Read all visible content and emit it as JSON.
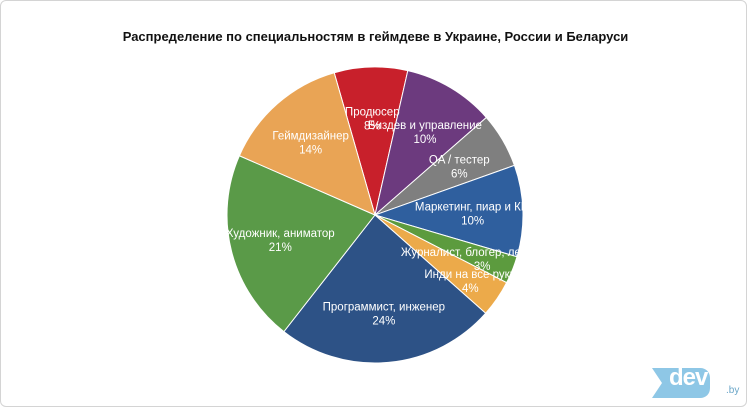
{
  "logo": {
    "text": "dev",
    "suffix": ".by"
  },
  "chart_data": {
    "type": "pie",
    "title": "Распределение по специальностям в геймдеве в Украине, России и Беларуси",
    "slices": [
      {
        "label": "Продюсер",
        "value": 8,
        "display": "8%",
        "color": "#c8202b"
      },
      {
        "label": "Биздев и управление",
        "value": 10,
        "display": "10%",
        "color": "#6c3a7e"
      },
      {
        "label": "QA / тестер",
        "value": 6,
        "display": "6%",
        "color": "#7f7f7f"
      },
      {
        "label": "Маркетинг, пиар и КМ",
        "value": 10,
        "display": "10%",
        "color": "#2f5f9e"
      },
      {
        "label": "Журналист, блогер, летсплеер",
        "value": 3,
        "display": "3%",
        "color": "#5c9b3e"
      },
      {
        "label": "Инди на все руки",
        "value": 4,
        "display": "4%",
        "color": "#ecaa4a"
      },
      {
        "label": "Программист, инженер",
        "value": 24,
        "display": "24%",
        "color": "#2d5286"
      },
      {
        "label": "Художник, аниматор",
        "value": 21,
        "display": "21%",
        "color": "#5a9a48"
      },
      {
        "label": "Геймдизайнер",
        "value": 14,
        "display": "14%",
        "color": "#e9a455"
      }
    ]
  }
}
